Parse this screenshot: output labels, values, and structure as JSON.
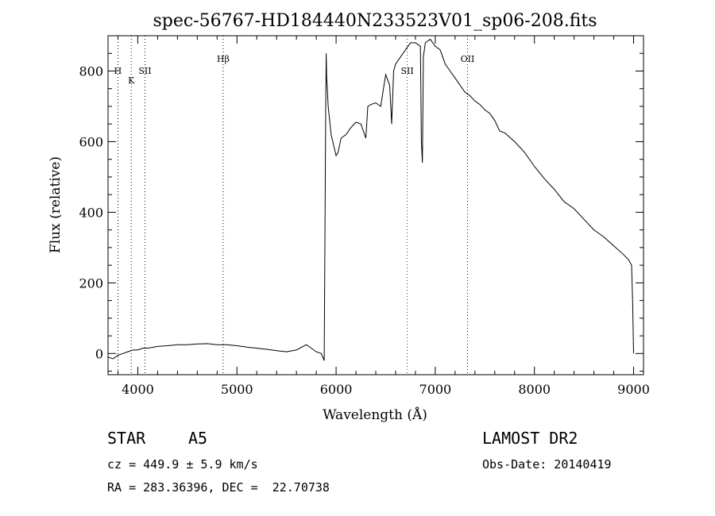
{
  "chart_data": {
    "type": "line",
    "title": "spec-56767-HD184440N233523V01_sp06-208.fits",
    "xlabel": "Wavelength (Å)",
    "ylabel": "Flux (relative)",
    "xlim": [
      3700,
      9100
    ],
    "ylim": [
      -60,
      900
    ],
    "x_ticks": [
      4000,
      5000,
      6000,
      7000,
      8000,
      9000
    ],
    "y_ticks": [
      0,
      200,
      400,
      600,
      800
    ],
    "grid": false,
    "series": [
      {
        "color": "#000000",
        "x": [
          3700,
          3750,
          3800,
          3850,
          3900,
          3950,
          4000,
          4050,
          4100,
          4200,
          4300,
          4400,
          4500,
          4600,
          4700,
          4800,
          4900,
          5000,
          5100,
          5200,
          5300,
          5400,
          5500,
          5600,
          5700,
          5750,
          5800,
          5850,
          5880,
          5895,
          5900,
          5905,
          5910,
          5920,
          5950,
          6000,
          6020,
          6050,
          6100,
          6150,
          6200,
          6250,
          6300,
          6320,
          6350,
          6400,
          6450,
          6500,
          6540,
          6560,
          6580,
          6600,
          6650,
          6700,
          6750,
          6800,
          6850,
          6860,
          6870,
          6880,
          6900,
          6950,
          7000,
          7050,
          7100,
          7150,
          7200,
          7250,
          7300,
          7350,
          7400,
          7450,
          7500,
          7550,
          7600,
          7650,
          7700,
          7800,
          7900,
          8000,
          8100,
          8200,
          8300,
          8400,
          8500,
          8600,
          8700,
          8800,
          8900,
          8950,
          8980,
          8990,
          9000
        ],
        "y": [
          -10,
          -15,
          -5,
          0,
          5,
          10,
          10,
          15,
          15,
          20,
          22,
          25,
          25,
          27,
          28,
          25,
          25,
          22,
          18,
          15,
          12,
          8,
          5,
          10,
          25,
          15,
          5,
          0,
          -20,
          700,
          850,
          780,
          760,
          700,
          620,
          560,
          570,
          610,
          620,
          640,
          655,
          650,
          610,
          700,
          705,
          710,
          700,
          790,
          760,
          650,
          800,
          820,
          840,
          860,
          880,
          880,
          870,
          600,
          540,
          840,
          880,
          890,
          870,
          860,
          820,
          800,
          780,
          760,
          740,
          730,
          715,
          705,
          690,
          680,
          660,
          630,
          625,
          600,
          570,
          530,
          495,
          465,
          430,
          410,
          380,
          350,
          330,
          305,
          280,
          265,
          250,
          150,
          0
        ]
      }
    ],
    "line_markers": [
      {
        "label": "H",
        "x": 3800,
        "color": "#000000"
      },
      {
        "label": "K",
        "x": 3934,
        "color": "#000000"
      },
      {
        "label": "SII",
        "x": 4072,
        "color": "#000000"
      },
      {
        "label": "Hβ",
        "x": 4861,
        "color": "#000000"
      },
      {
        "label": "SII",
        "x": 6717,
        "color": "#cc0000"
      },
      {
        "label": "OII",
        "x": 7325,
        "color": "#000000"
      }
    ]
  },
  "info": {
    "object_class": "STAR",
    "subclass": "A5",
    "cz_text": "cz = 449.9 ± 5.9 km/s",
    "coords_text": "RA = 283.36396, DEC =  22.70738",
    "survey": "LAMOST DR2",
    "obs_date": "Obs-Date: 20140419"
  }
}
